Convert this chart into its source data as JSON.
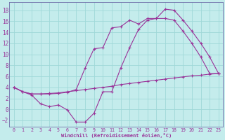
{
  "title": "Windchill (Refroidissement éolien,°C)",
  "bg_color": "#c4ecec",
  "grid_color": "#a0d8d8",
  "line_color": "#993399",
  "spine_color": "#7070aa",
  "xlim": [
    -0.5,
    23.5
  ],
  "ylim": [
    -3.2,
    19.5
  ],
  "xticks": [
    0,
    1,
    2,
    3,
    4,
    5,
    6,
    7,
    8,
    9,
    10,
    11,
    12,
    13,
    14,
    15,
    16,
    17,
    18,
    19,
    20,
    21,
    22,
    23
  ],
  "yticks": [
    -2,
    0,
    2,
    4,
    6,
    8,
    10,
    12,
    14,
    16,
    18
  ],
  "line_flat_x": [
    0,
    1,
    2,
    3,
    4,
    5,
    6,
    7,
    8,
    9,
    10,
    11,
    12,
    13,
    14,
    15,
    16,
    17,
    18,
    19,
    20,
    21,
    22,
    23
  ],
  "line_flat_y": [
    4.0,
    3.2,
    2.8,
    2.8,
    2.9,
    3.0,
    3.2,
    3.4,
    3.6,
    3.8,
    4.0,
    4.2,
    4.5,
    4.7,
    4.9,
    5.1,
    5.3,
    5.5,
    5.7,
    5.9,
    6.1,
    6.2,
    6.4,
    6.5
  ],
  "line_low_x": [
    0,
    1,
    2,
    3,
    4,
    5,
    6,
    7,
    8,
    9,
    10,
    11,
    12,
    13,
    14,
    15,
    16,
    17,
    18,
    19,
    20,
    21,
    22,
    23
  ],
  "line_low_y": [
    4.0,
    3.2,
    2.6,
    1.0,
    0.5,
    0.8,
    -0.1,
    -2.3,
    -2.3,
    -0.7,
    3.2,
    3.2,
    7.5,
    11.2,
    14.5,
    16.2,
    16.5,
    18.2,
    18.0,
    16.2,
    14.2,
    12.0,
    9.5,
    6.5
  ],
  "line_high_x": [
    0,
    1,
    2,
    3,
    4,
    5,
    6,
    7,
    8,
    9,
    10,
    11,
    12,
    13,
    14,
    15,
    16,
    17,
    18,
    19,
    20,
    21,
    22,
    23
  ],
  "line_high_y": [
    4.0,
    3.2,
    2.8,
    2.8,
    2.8,
    2.9,
    3.1,
    3.6,
    7.5,
    11.0,
    11.2,
    14.8,
    15.0,
    16.2,
    15.5,
    16.5,
    16.5,
    16.5,
    16.2,
    14.2,
    12.0,
    9.5,
    6.5,
    6.5
  ]
}
